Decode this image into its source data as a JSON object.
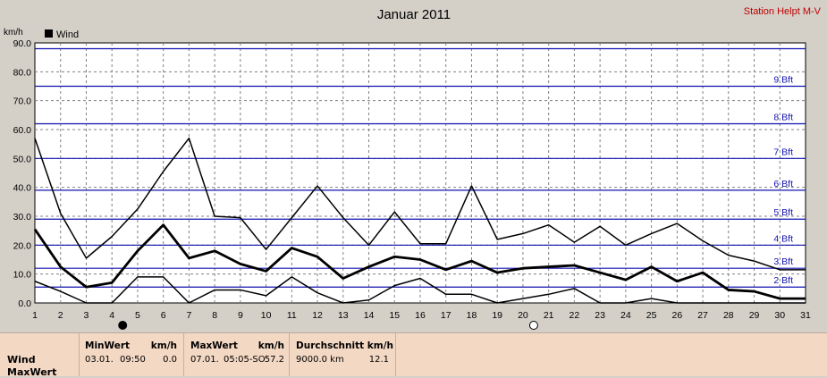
{
  "chart_data": {
    "type": "line",
    "title": "Januar 2011",
    "station": "Station Helpt M-V",
    "ylabel": "km/h",
    "ylim": [
      0,
      90
    ],
    "yticks": [
      "0.0",
      "10.0",
      "20.0",
      "30.0",
      "40.0",
      "50.0",
      "60.0",
      "70.0",
      "80.0",
      "90.0"
    ],
    "x": [
      1,
      2,
      3,
      4,
      5,
      6,
      7,
      8,
      9,
      10,
      11,
      12,
      13,
      14,
      15,
      16,
      17,
      18,
      19,
      20,
      21,
      22,
      23,
      24,
      25,
      26,
      27,
      28,
      29,
      30,
      31
    ],
    "legend": "Wind",
    "grid": true,
    "series": [
      {
        "name": "Wind",
        "stroke": 1.5,
        "values": [
          57,
          31,
          15.5,
          23,
          32.5,
          45.5,
          57,
          30,
          29.5,
          18.5,
          29.5,
          40.5,
          29.5,
          20,
          31.5,
          20.5,
          20.5,
          40.5,
          22,
          24,
          27,
          21,
          26.5,
          20,
          24,
          27.5,
          21.5,
          16.5,
          14.5,
          11.5,
          11.5
        ]
      },
      {
        "stroke": 2.8,
        "values": [
          25.5,
          12.5,
          5.5,
          7,
          18,
          27,
          15.5,
          18,
          13.5,
          11,
          19,
          16,
          8.5,
          12.5,
          16,
          15,
          11.5,
          14.5,
          10.5,
          12,
          12.5,
          13,
          10.5,
          8,
          12.5,
          7.5,
          10.5,
          4.5,
          4,
          1.5,
          1.5
        ]
      },
      {
        "stroke": 1.5,
        "values": [
          7.5,
          4,
          0,
          0,
          9,
          9,
          0,
          4.5,
          4.5,
          2.5,
          9,
          3.5,
          0,
          1,
          6,
          8.5,
          3,
          3,
          0,
          1.5,
          3,
          5,
          0,
          0,
          1.5,
          0,
          0,
          0,
          0,
          0,
          0
        ]
      }
    ],
    "beaufort": [
      {
        "label": "2 Bft",
        "value": 5.5
      },
      {
        "label": "3 Bft",
        "value": 12
      },
      {
        "label": "4 Bft",
        "value": 20
      },
      {
        "label": "5 Bft",
        "value": 29
      },
      {
        "label": "6 Bft",
        "value": 39
      },
      {
        "label": "7 Bft",
        "value": 50
      },
      {
        "label": "8 Bft",
        "value": 62
      },
      {
        "label": "9 Bft",
        "value": 75
      },
      {
        "label": "",
        "value": 88
      }
    ],
    "moon": [
      {
        "day": 4,
        "phase": "new"
      },
      {
        "day": 20,
        "phase": "full"
      }
    ]
  },
  "footer": {
    "row1": "Wind",
    "row2": "MaxWert",
    "min_header": "MinWert",
    "min_unit": "km/h",
    "min_date": "03.01.",
    "min_time": "09:50",
    "min_value": "0.0",
    "max_header": "MaxWert",
    "max_unit": "km/h",
    "max_date": "07.01.",
    "max_time": "05:05-SO",
    "max_value": "57.2",
    "avg_header": "Durchschnitt km/h",
    "avg_distance": "9000.0 km",
    "avg_value": "12.1"
  }
}
